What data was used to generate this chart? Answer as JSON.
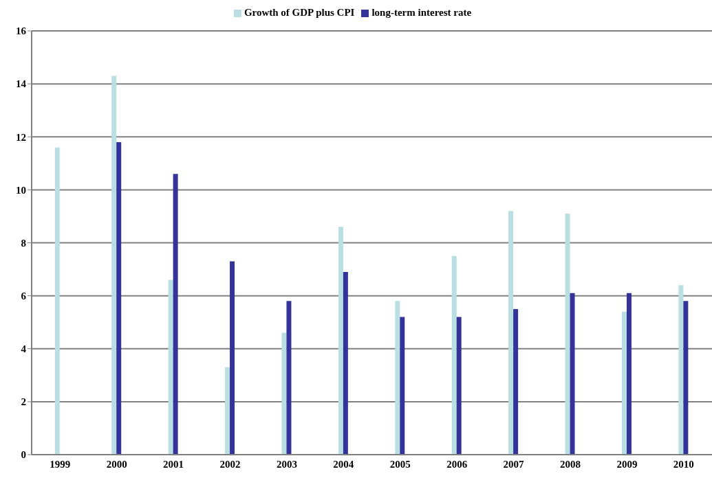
{
  "chart_data": {
    "type": "bar",
    "categories": [
      "1999",
      "2000",
      "2001",
      "2002",
      "2003",
      "2004",
      "2005",
      "2006",
      "2007",
      "2008",
      "2009",
      "2010"
    ],
    "series": [
      {
        "name": "Growth of GDP plus CPI",
        "color": "#b9dfe2",
        "values": [
          11.6,
          14.3,
          6.6,
          3.3,
          4.6,
          8.6,
          5.8,
          7.5,
          9.2,
          9.1,
          5.4,
          6.4
        ]
      },
      {
        "name": "long-term interest rate",
        "color": "#333399",
        "values": [
          null,
          11.8,
          10.6,
          7.3,
          5.8,
          6.9,
          5.2,
          5.2,
          5.5,
          6.1,
          6.1,
          5.8
        ]
      }
    ],
    "ylim": [
      0,
      16
    ],
    "yticks": [
      0,
      2,
      4,
      6,
      8,
      10,
      12,
      14,
      16
    ],
    "grid": "y",
    "legend": "top"
  }
}
